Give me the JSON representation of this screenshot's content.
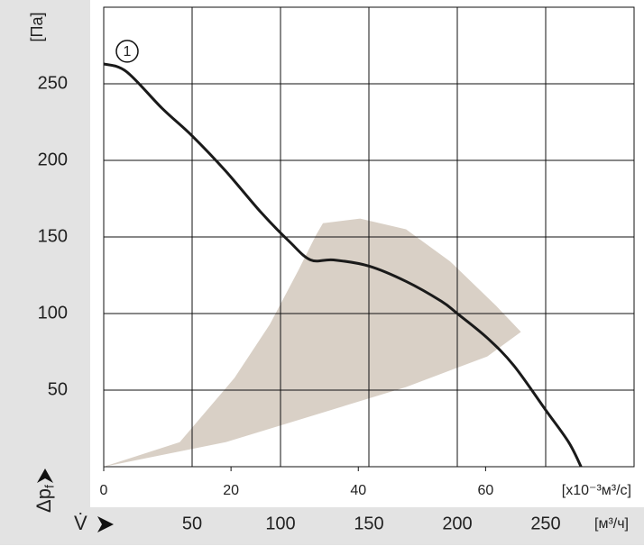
{
  "chart_data": {
    "type": "line",
    "xlim": [
      0,
      300
    ],
    "ylim": [
      0,
      300
    ],
    "xticks": [
      50,
      100,
      150,
      200,
      250
    ],
    "yticks": [
      50,
      100,
      150,
      200,
      250
    ],
    "x2lim": [
      0,
      83.33
    ],
    "x2ticks": [
      0,
      20,
      40,
      60
    ],
    "y_label": "Δp",
    "y_label_sub": "f",
    "y_unit": "[Па]",
    "x_label": "V̇",
    "x_unit": "[м³/ч]",
    "x2_unit": "[x10⁻³м³/с]",
    "grid": true,
    "series": [
      {
        "name": "1",
        "color": "#1a1a1a",
        "x": [
          0,
          12.8,
          33,
          50,
          69,
          89,
          105,
          117,
          130,
          150,
          171,
          191,
          200,
          217,
          232,
          250,
          263,
          270
        ],
        "values": [
          263,
          258,
          234,
          216,
          193,
          166,
          147,
          135,
          135,
          131,
          121,
          108,
          100,
          84,
          66,
          37,
          16,
          0
        ]
      }
    ],
    "region": {
      "color": "#d9d0c6",
      "x": [
        0,
        43,
        74,
        94,
        110,
        120,
        124,
        145,
        171,
        196,
        222,
        236,
        217,
        171,
        120,
        69
      ],
      "values": [
        0,
        16,
        58,
        93,
        128,
        151,
        159,
        162,
        155,
        134,
        105,
        88,
        72,
        52,
        34,
        16
      ]
    }
  }
}
